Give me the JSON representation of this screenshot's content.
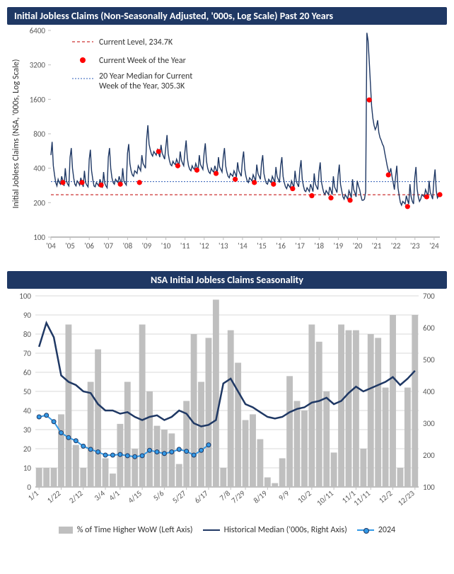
{
  "chart1": {
    "type": "line",
    "title": "Initial Jobless Claims (Non-Seasonally Adjusted, '000s, Log Scale) Past 20 Years",
    "title_bg": "#1f3864",
    "title_fontsize": 14,
    "ylabel": "Initial Jobless Claims (NSA, '000s, Log Scale)",
    "background_color": "#ffffff",
    "y_scale": "log",
    "ylim": [
      100,
      6400
    ],
    "yticks": [
      100,
      200,
      400,
      800,
      1600,
      3200,
      6400
    ],
    "xcategories": [
      "'04",
      "'05",
      "'06",
      "'07",
      "'08",
      "'09",
      "'10",
      "'11",
      "'12",
      "'13",
      "'14",
      "'15",
      "'16",
      "'17",
      "'18",
      "'19",
      "'20",
      "'21",
      "'22",
      "'23",
      "'24"
    ],
    "series_color": "#1f3864",
    "series_width": 1.4,
    "current_level_line": {
      "value": 234.7,
      "label": "Current Level, 234.7K",
      "color": "#c00000",
      "dash": "4,3"
    },
    "median_line": {
      "value": 305.3,
      "label": "20 Year Median for Current Week of the Year, 305.3K",
      "color": "#2e5cb8",
      "dash": "2,2"
    },
    "red_marker_label": "Current Week of the Year",
    "red_marker_color": "#ff0000",
    "red_points_y": [
      300,
      300,
      285,
      290,
      300,
      560,
      420,
      385,
      360,
      320,
      300,
      290,
      265,
      230,
      220,
      210,
      1580,
      350,
      185,
      225,
      235
    ],
    "weekly_series": [
      520,
      680,
      420,
      350,
      300,
      280,
      320,
      300,
      290,
      340,
      310,
      280,
      400,
      310,
      290,
      280,
      500,
      600,
      400,
      330,
      290,
      280,
      310,
      300,
      285,
      330,
      300,
      275,
      380,
      300,
      285,
      275,
      480,
      580,
      380,
      320,
      280,
      275,
      300,
      290,
      280,
      320,
      295,
      270,
      370,
      295,
      280,
      270,
      500,
      600,
      400,
      330,
      300,
      290,
      320,
      310,
      300,
      340,
      310,
      285,
      400,
      310,
      295,
      285,
      540,
      650,
      440,
      380,
      350,
      340,
      380,
      370,
      360,
      420,
      400,
      380,
      520,
      440,
      420,
      400,
      720,
      950,
      650,
      580,
      530,
      510,
      560,
      540,
      520,
      580,
      540,
      500,
      640,
      540,
      510,
      480,
      620,
      780,
      540,
      470,
      430,
      420,
      460,
      440,
      430,
      480,
      450,
      420,
      560,
      470,
      440,
      420,
      560,
      700,
      490,
      420,
      390,
      380,
      420,
      400,
      390,
      440,
      410,
      385,
      520,
      430,
      410,
      390,
      540,
      660,
      460,
      400,
      370,
      360,
      400,
      380,
      370,
      420,
      390,
      365,
      500,
      410,
      390,
      370,
      500,
      600,
      420,
      370,
      340,
      330,
      360,
      350,
      340,
      380,
      360,
      335,
      450,
      380,
      360,
      340,
      470,
      560,
      390,
      340,
      310,
      300,
      330,
      320,
      310,
      350,
      330,
      310,
      430,
      360,
      340,
      320,
      440,
      520,
      360,
      320,
      295,
      290,
      320,
      310,
      300,
      340,
      320,
      300,
      410,
      340,
      320,
      300,
      420,
      500,
      340,
      300,
      275,
      265,
      290,
      280,
      270,
      310,
      290,
      270,
      380,
      310,
      290,
      275,
      390,
      470,
      320,
      280,
      255,
      250,
      270,
      260,
      250,
      290,
      270,
      250,
      360,
      290,
      275,
      260,
      370,
      450,
      305,
      270,
      245,
      235,
      255,
      245,
      235,
      275,
      255,
      235,
      340,
      275,
      260,
      245,
      350,
      430,
      290,
      255,
      225,
      215,
      235,
      225,
      215,
      255,
      240,
      220,
      320,
      260,
      245,
      225,
      310,
      280,
      260,
      230,
      210,
      210,
      215,
      250,
      6100,
      5200,
      3400,
      2200,
      1400,
      1100,
      950,
      870,
      920,
      1050,
      820,
      740,
      700,
      650,
      620,
      540,
      480,
      420,
      380,
      360,
      400,
      340,
      300,
      260,
      340,
      420,
      270,
      230,
      200,
      190,
      205,
      200,
      195,
      230,
      210,
      195,
      290,
      225,
      205,
      195,
      330,
      410,
      265,
      225,
      205,
      215,
      235,
      230,
      225,
      260,
      245,
      225,
      310,
      245,
      230,
      215,
      310,
      390,
      255,
      220,
      230,
      235
    ]
  },
  "chart2": {
    "type": "combo",
    "title": "NSA Initial Jobless Claims Seasonality",
    "title_bg": "#1f3864",
    "title_fontsize": 14,
    "background_color": "#ffffff",
    "left_axis": {
      "lim": [
        0,
        100
      ],
      "ticks": [
        0,
        10,
        20,
        30,
        40,
        50,
        60,
        70,
        80,
        90,
        100
      ]
    },
    "right_axis": {
      "lim": [
        100,
        700
      ],
      "ticks": [
        100,
        200,
        300,
        400,
        500,
        600,
        700
      ]
    },
    "xcategories": [
      "1/1",
      "1/22",
      "2/12",
      "3/4",
      "4/1",
      "4/15",
      "5/6",
      "5/27",
      "6/17",
      "7/8",
      "7/29",
      "8/19",
      "9/9",
      "10/2",
      "10/11",
      "11/1",
      "11/11",
      "12/2",
      "12/23"
    ],
    "x_positions_52": true,
    "bar_color": "#bfbfbf",
    "median_line_color": "#1f3864",
    "series2024_color": "#3399e6",
    "series2024_marker_border": "#1f3864",
    "legend": {
      "bar": "% of Time Higher WoW (Left Axis)",
      "median": "Historical Median ('000s, Right Axis)",
      "s2024": "2024"
    },
    "bars_pct": [
      10,
      10,
      10,
      38,
      85,
      22,
      10,
      55,
      72,
      15,
      7,
      33,
      55,
      20,
      85,
      50,
      32,
      30,
      28,
      12,
      45,
      80,
      55,
      78,
      98,
      10,
      82,
      65,
      35,
      38,
      25,
      5,
      2,
      15,
      58,
      45,
      40,
      85,
      76,
      50,
      18,
      85,
      82,
      82,
      20,
      80,
      78,
      52,
      90,
      10,
      52,
      90
    ],
    "median_vals": [
      540,
      615,
      570,
      450,
      430,
      420,
      400,
      395,
      360,
      340,
      340,
      330,
      335,
      320,
      310,
      320,
      325,
      310,
      320,
      340,
      330,
      300,
      290,
      295,
      310,
      425,
      440,
      400,
      360,
      350,
      335,
      320,
      315,
      320,
      335,
      345,
      350,
      365,
      370,
      380,
      360,
      370,
      395,
      415,
      400,
      410,
      420,
      430,
      445,
      420,
      440,
      465
    ],
    "series2024_vals": [
      320,
      325,
      305,
      270,
      255,
      245,
      228,
      218,
      210,
      200,
      200,
      202,
      198,
      195,
      198,
      215,
      210,
      205,
      210,
      218,
      212,
      200,
      215,
      232
    ]
  }
}
